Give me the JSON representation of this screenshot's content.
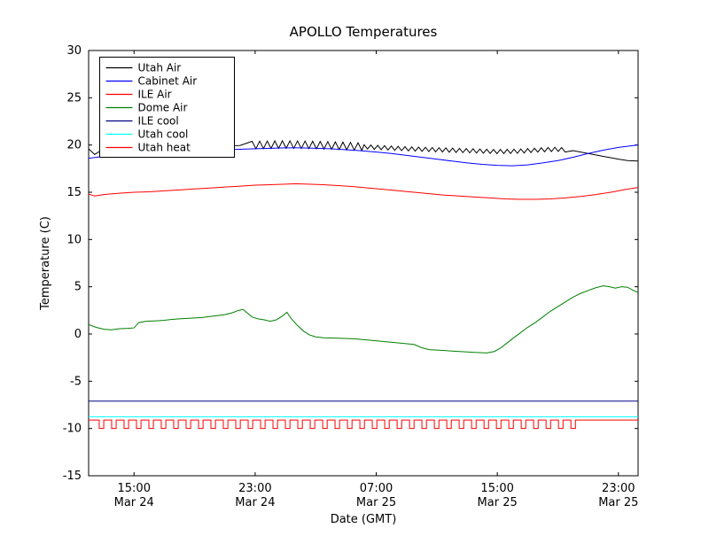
{
  "chart_data": {
    "type": "line",
    "title": "APOLLO Temperatures",
    "xlabel": "Date (GMT)",
    "ylabel": "Temperature (C)",
    "x_unit": "hours since Mar 24 00:00 GMT",
    "xlim": [
      12,
      48.3
    ],
    "ylim": [
      -15,
      30
    ],
    "grid": false,
    "legend_position": "upper-left",
    "yticks": [
      {
        "value": -15,
        "label": "-15"
      },
      {
        "value": -10,
        "label": "-10"
      },
      {
        "value": -5,
        "label": "-5"
      },
      {
        "value": 0,
        "label": "0"
      },
      {
        "value": 5,
        "label": "5"
      },
      {
        "value": 10,
        "label": "10"
      },
      {
        "value": 15,
        "label": "15"
      },
      {
        "value": 20,
        "label": "20"
      },
      {
        "value": 25,
        "label": "25"
      },
      {
        "value": 30,
        "label": "30"
      }
    ],
    "xticks": [
      {
        "hour": 15,
        "time": "15:00",
        "date": "Mar 24"
      },
      {
        "hour": 23,
        "time": "23:00",
        "date": "Mar 24"
      },
      {
        "hour": 31,
        "time": "07:00",
        "date": "Mar 25"
      },
      {
        "hour": 39,
        "time": "15:00",
        "date": "Mar 25"
      },
      {
        "hour": 47,
        "time": "23:00",
        "date": "Mar 25"
      }
    ],
    "series": [
      {
        "name": "Utah Air",
        "color": "#000000",
        "points": [
          [
            12,
            19.6
          ],
          [
            12.4,
            19.0
          ],
          [
            12.8,
            19.4
          ],
          [
            14,
            19.7
          ],
          [
            16,
            19.8
          ],
          [
            18,
            19.85
          ],
          [
            20,
            19.9
          ],
          [
            22,
            19.95
          ],
          [
            23,
            20.0
          ],
          [
            25,
            20.05
          ],
          [
            27,
            20.0
          ],
          [
            29,
            19.9
          ],
          [
            31,
            19.75
          ],
          [
            33,
            19.6
          ],
          [
            35,
            19.5
          ],
          [
            37,
            19.4
          ],
          [
            39,
            19.3
          ],
          [
            40.5,
            19.35
          ],
          [
            42,
            19.5
          ],
          [
            43,
            19.55
          ],
          [
            44,
            19.4
          ],
          [
            45,
            19.1
          ],
          [
            46,
            18.8
          ],
          [
            47,
            18.5
          ],
          [
            47.6,
            18.35
          ],
          [
            48.3,
            18.3
          ]
        ],
        "osc": [
          {
            "from": 22.8,
            "to": 30.2,
            "amp": 0.4,
            "period": 0.5
          },
          {
            "from": 30.2,
            "to": 43.6,
            "amp": 0.22,
            "period": 0.45
          }
        ]
      },
      {
        "name": "Cabinet Air",
        "color": "#0000ff",
        "points": [
          [
            12,
            18.6
          ],
          [
            13,
            18.8
          ],
          [
            14,
            18.95
          ],
          [
            15,
            19.05
          ],
          [
            16,
            19.15
          ],
          [
            17,
            19.25
          ],
          [
            18,
            19.3
          ],
          [
            19,
            19.4
          ],
          [
            20,
            19.45
          ],
          [
            21,
            19.5
          ],
          [
            22,
            19.55
          ],
          [
            23,
            19.6
          ],
          [
            24,
            19.65
          ],
          [
            25,
            19.7
          ],
          [
            26,
            19.7
          ],
          [
            27,
            19.65
          ],
          [
            28,
            19.6
          ],
          [
            29,
            19.5
          ],
          [
            30,
            19.4
          ],
          [
            31,
            19.25
          ],
          [
            32,
            19.1
          ],
          [
            33,
            18.9
          ],
          [
            34,
            18.7
          ],
          [
            35,
            18.5
          ],
          [
            36,
            18.3
          ],
          [
            37,
            18.1
          ],
          [
            38,
            17.95
          ],
          [
            39,
            17.85
          ],
          [
            40,
            17.8
          ],
          [
            41,
            17.9
          ],
          [
            42,
            18.1
          ],
          [
            43,
            18.35
          ],
          [
            44,
            18.7
          ],
          [
            45,
            19.1
          ],
          [
            46,
            19.45
          ],
          [
            47,
            19.75
          ],
          [
            48,
            19.95
          ],
          [
            48.3,
            20.0
          ]
        ]
      },
      {
        "name": "ILE Air",
        "color": "#ff0000",
        "points": [
          [
            12,
            14.8
          ],
          [
            12.4,
            14.6
          ],
          [
            13,
            14.75
          ],
          [
            14,
            14.9
          ],
          [
            15,
            15.0
          ],
          [
            16,
            15.05
          ],
          [
            17,
            15.15
          ],
          [
            18,
            15.25
          ],
          [
            19,
            15.35
          ],
          [
            20,
            15.45
          ],
          [
            21,
            15.55
          ],
          [
            22,
            15.65
          ],
          [
            23,
            15.75
          ],
          [
            24,
            15.8
          ],
          [
            25,
            15.85
          ],
          [
            25.7,
            15.9
          ],
          [
            26.5,
            15.85
          ],
          [
            27.5,
            15.8
          ],
          [
            28.5,
            15.7
          ],
          [
            29.5,
            15.6
          ],
          [
            30.5,
            15.45
          ],
          [
            31.5,
            15.3
          ],
          [
            32.5,
            15.15
          ],
          [
            33.5,
            15.0
          ],
          [
            34.5,
            14.85
          ],
          [
            35.5,
            14.7
          ],
          [
            36.5,
            14.6
          ],
          [
            37.5,
            14.5
          ],
          [
            38.5,
            14.4
          ],
          [
            39.5,
            14.3
          ],
          [
            40.5,
            14.25
          ],
          [
            41.5,
            14.25
          ],
          [
            42.5,
            14.3
          ],
          [
            43.5,
            14.4
          ],
          [
            44.5,
            14.55
          ],
          [
            45.5,
            14.75
          ],
          [
            46.5,
            15.0
          ],
          [
            47.5,
            15.3
          ],
          [
            48.3,
            15.5
          ]
        ]
      },
      {
        "name": "Dome Air",
        "color": "#008000",
        "points": [
          [
            12,
            1.0
          ],
          [
            12.5,
            0.7
          ],
          [
            13,
            0.5
          ],
          [
            13.5,
            0.45
          ],
          [
            14,
            0.55
          ],
          [
            14.6,
            0.6
          ],
          [
            15,
            0.65
          ],
          [
            15.3,
            1.2
          ],
          [
            15.8,
            1.35
          ],
          [
            16.5,
            1.4
          ],
          [
            17,
            1.45
          ],
          [
            17.5,
            1.55
          ],
          [
            18,
            1.6
          ],
          [
            18.5,
            1.65
          ],
          [
            19,
            1.7
          ],
          [
            19.5,
            1.75
          ],
          [
            20,
            1.85
          ],
          [
            20.5,
            1.95
          ],
          [
            21,
            2.05
          ],
          [
            21.5,
            2.25
          ],
          [
            21.9,
            2.5
          ],
          [
            22.2,
            2.6
          ],
          [
            22.5,
            2.2
          ],
          [
            22.8,
            1.8
          ],
          [
            23.2,
            1.6
          ],
          [
            23.6,
            1.5
          ],
          [
            24,
            1.35
          ],
          [
            24.4,
            1.5
          ],
          [
            24.8,
            1.9
          ],
          [
            25.1,
            2.3
          ],
          [
            25.4,
            1.6
          ],
          [
            25.8,
            0.9
          ],
          [
            26.2,
            0.3
          ],
          [
            26.6,
            -0.1
          ],
          [
            27,
            -0.3
          ],
          [
            27.5,
            -0.4
          ],
          [
            28.5,
            -0.45
          ],
          [
            29.5,
            -0.5
          ],
          [
            30.5,
            -0.65
          ],
          [
            31.5,
            -0.8
          ],
          [
            32.5,
            -0.95
          ],
          [
            33.5,
            -1.1
          ],
          [
            34,
            -1.45
          ],
          [
            34.5,
            -1.65
          ],
          [
            35.5,
            -1.75
          ],
          [
            36.5,
            -1.85
          ],
          [
            37.5,
            -1.95
          ],
          [
            38.3,
            -2.0
          ],
          [
            38.8,
            -1.85
          ],
          [
            39.2,
            -1.5
          ],
          [
            39.6,
            -1.0
          ],
          [
            40,
            -0.5
          ],
          [
            40.5,
            0.1
          ],
          [
            41,
            0.7
          ],
          [
            41.5,
            1.2
          ],
          [
            42,
            1.8
          ],
          [
            42.5,
            2.4
          ],
          [
            43,
            2.9
          ],
          [
            43.5,
            3.4
          ],
          [
            44,
            3.9
          ],
          [
            44.5,
            4.3
          ],
          [
            45,
            4.6
          ],
          [
            45.5,
            4.9
          ],
          [
            46,
            5.1
          ],
          [
            46.4,
            5.0
          ],
          [
            46.8,
            4.85
          ],
          [
            47.2,
            5.0
          ],
          [
            47.6,
            4.95
          ],
          [
            48,
            4.6
          ],
          [
            48.3,
            4.4
          ]
        ]
      },
      {
        "name": "ILE cool",
        "color": "#000080",
        "points": [
          [
            12,
            -7.1
          ],
          [
            48.3,
            -7.1
          ]
        ]
      },
      {
        "name": "Utah cool",
        "color": "#00ffff",
        "points": [
          [
            12,
            -8.75
          ],
          [
            48.3,
            -8.75
          ]
        ]
      },
      {
        "name": "Utah heat",
        "color": "#ff0000",
        "points": [
          [
            12,
            -9.1
          ],
          [
            48.3,
            -9.1
          ]
        ],
        "pulse": {
          "base": -9.1,
          "low": -10.0,
          "start": 12.7,
          "end": 44.2,
          "period": 0.82,
          "width": 0.3
        }
      }
    ]
  }
}
